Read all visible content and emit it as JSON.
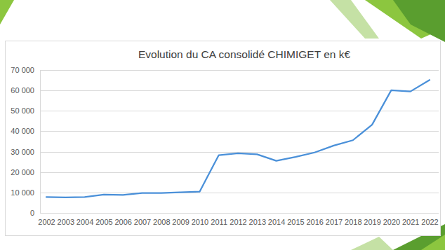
{
  "chart_data": {
    "type": "line",
    "title": "Evolution du CA consolidé CHIMIGET en k€",
    "categories": [
      "2002",
      "2003",
      "2004",
      "2005",
      "2006",
      "2007",
      "2008",
      "2009",
      "2010",
      "2011",
      "2012",
      "2013",
      "2014",
      "2015",
      "2016",
      "2017",
      "2018",
      "2019",
      "2020",
      "2021",
      "2022"
    ],
    "values": [
      7800,
      7600,
      7800,
      9000,
      8800,
      9700,
      9700,
      10100,
      10400,
      28300,
      29200,
      28700,
      25500,
      27400,
      29600,
      33000,
      35600,
      43200,
      60100,
      59500,
      65100
    ],
    "color": "#4a90d9",
    "ylim": [
      0,
      70000
    ],
    "yticks": [
      0,
      {
        "value": 10000,
        "label": "10 000"
      },
      {
        "value": 20000,
        "label": "20 000"
      },
      {
        "value": 30000,
        "label": "30 000"
      },
      {
        "value": 40000,
        "label": "40 000"
      },
      {
        "value": 50000,
        "label": "50 000"
      },
      {
        "value": 60000,
        "label": "60 000"
      },
      {
        "value": 70000,
        "label": "70 000"
      }
    ],
    "grid": true
  }
}
